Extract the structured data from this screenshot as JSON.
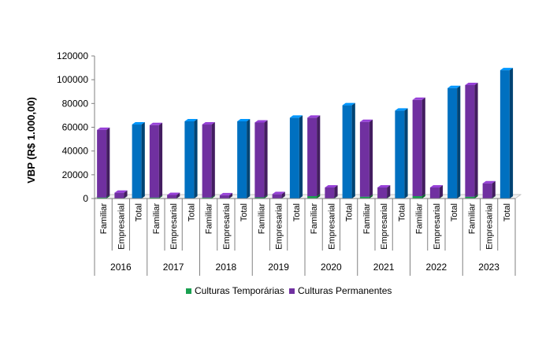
{
  "chart_data": {
    "type": "bar",
    "stacked": true,
    "three_d": true,
    "ylabel": "VBP (R$ 1.000,00)",
    "ylim": [
      0,
      120000
    ],
    "yticks": [
      0,
      20000,
      40000,
      60000,
      80000,
      100000,
      120000
    ],
    "ytick_labels": [
      "0",
      "20000",
      "40000",
      "60000",
      "80000",
      "100000",
      "120000"
    ],
    "groups": [
      "2016",
      "2017",
      "2018",
      "2019",
      "2020",
      "2021",
      "2022",
      "2023"
    ],
    "subcategories": [
      "Familiar",
      "Empresarial",
      "Total"
    ],
    "legend_position": "bottom",
    "series": [
      {
        "name": "Culturas Temporárias",
        "color": "#1aa050",
        "values": [
          [
            800,
            200,
            0
          ],
          [
            800,
            200,
            0
          ],
          [
            800,
            200,
            0
          ],
          [
            1000,
            200,
            0
          ],
          [
            2000,
            300,
            0
          ],
          [
            1500,
            300,
            0
          ],
          [
            2000,
            300,
            0
          ],
          [
            1500,
            300,
            0
          ]
        ]
      },
      {
        "name": "Culturas Permanentes",
        "color": "#7030a0",
        "values": [
          [
            57000,
            4700,
            0
          ],
          [
            61000,
            2800,
            0
          ],
          [
            61500,
            2500,
            0
          ],
          [
            63000,
            3500,
            0
          ],
          [
            66000,
            9000,
            0
          ],
          [
            63000,
            9000,
            0
          ],
          [
            81000,
            9000,
            0
          ],
          [
            94000,
            12500,
            0
          ]
        ]
      },
      {
        "name": "Total",
        "color": "#0070c0",
        "values": [
          [
            0,
            0,
            62300
          ],
          [
            0,
            0,
            65000
          ],
          [
            0,
            0,
            65000
          ],
          [
            0,
            0,
            68000
          ],
          [
            0,
            0,
            78500
          ],
          [
            0,
            0,
            74000
          ],
          [
            0,
            0,
            93000
          ],
          [
            0,
            0,
            108000
          ]
        ]
      }
    ]
  }
}
